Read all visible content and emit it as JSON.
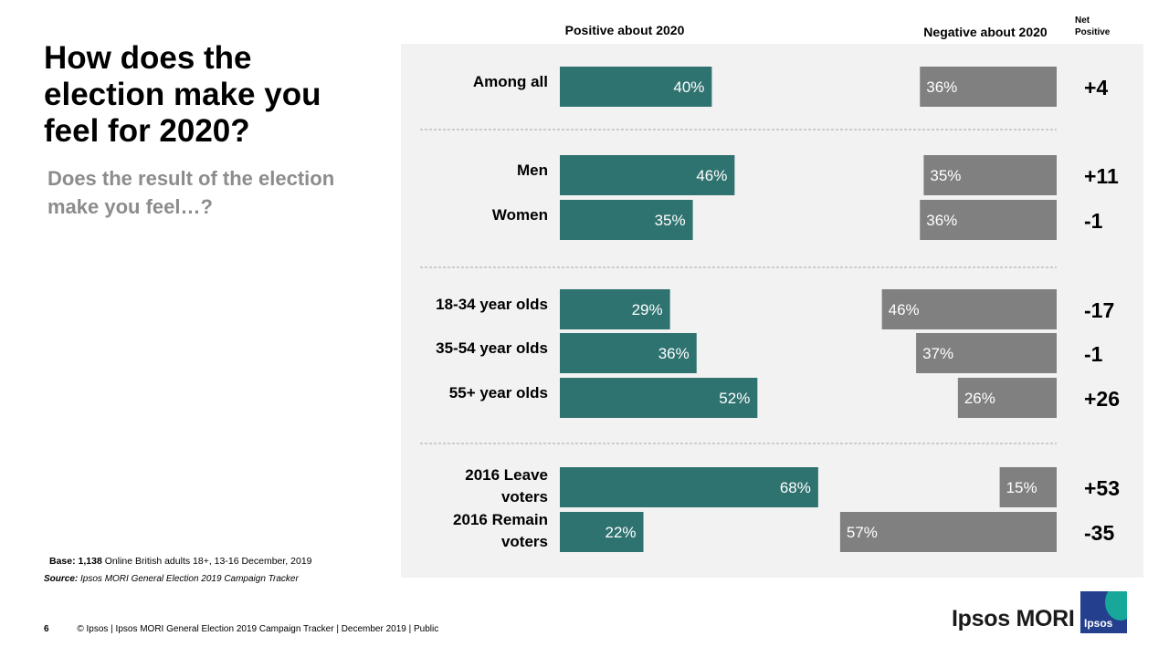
{
  "header": {
    "title": "How does the election make you feel for 2020?",
    "subtitle": "Does the result of the election make you feel…?"
  },
  "notes": {
    "base_label": "Base:",
    "base_count": "1,138",
    "base_text": "Online British adults 18+, 13-16 December, 2019",
    "source_label": "Source:",
    "source_text": "Ipsos MORI General Election 2019 Campaign Tracker"
  },
  "footer": {
    "page_number": "6",
    "text": "© Ipsos | Ipsos MORI  General Election 2019 Campaign Tracker | December 2019 | Public"
  },
  "logo": {
    "text": "Ipsos MORI",
    "badge": "Ipsos"
  },
  "colors": {
    "positive": "#2f7370",
    "negative": "#808080",
    "panel": "#f2f2f2",
    "divider": "#a6a6a6",
    "logo_blue": "#233f8e",
    "logo_teal": "#18a89a"
  },
  "chart_data": {
    "type": "bar",
    "title": "",
    "columns": {
      "positive": "Positive about 2020",
      "negative": "Negative about 2020",
      "net": "Net Positive"
    },
    "groups": [
      {
        "rows": [
          {
            "label": [
              "Among all"
            ],
            "positive": 40,
            "negative": 36,
            "net": "+4"
          }
        ]
      },
      {
        "rows": [
          {
            "label": [
              "Men"
            ],
            "positive": 46,
            "negative": 35,
            "net": "+11"
          },
          {
            "label": [
              "Women"
            ],
            "positive": 35,
            "negative": 36,
            "net": "-1"
          }
        ]
      },
      {
        "rows": [
          {
            "label": [
              "18-34 year olds"
            ],
            "positive": 29,
            "negative": 46,
            "net": "-17"
          },
          {
            "label": [
              "35-54 year olds"
            ],
            "positive": 36,
            "negative": 37,
            "net": "-1"
          },
          {
            "label": [
              "55+ year olds"
            ],
            "positive": 52,
            "negative": 26,
            "net": "+26"
          }
        ]
      },
      {
        "rows": [
          {
            "label": [
              "2016 Leave",
              "voters"
            ],
            "positive": 68,
            "negative": 15,
            "net": "+53"
          },
          {
            "label": [
              "2016 Remain",
              "voters"
            ],
            "positive": 22,
            "negative": 57,
            "net": "-35"
          }
        ]
      }
    ]
  }
}
